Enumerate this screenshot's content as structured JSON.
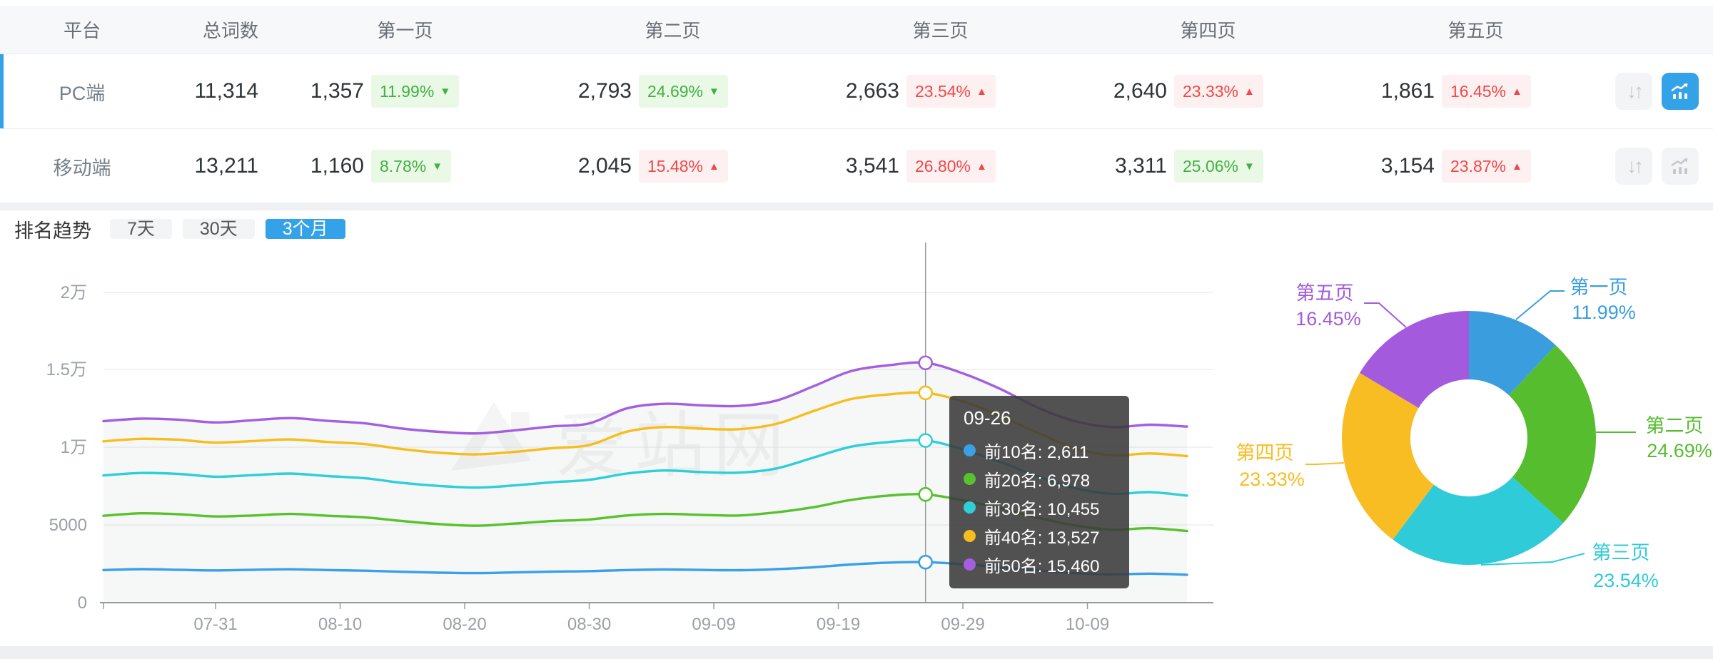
{
  "colors": {
    "accent": "#34a2e8",
    "positive_text": "#42b043",
    "positive_bg": "#eaf8e6",
    "negative_text": "#f04848",
    "negative_bg": "#fdf0f1",
    "header_bg": "#f7f8fa",
    "series_blue": "#3aa0e8",
    "series_green": "#58c22e",
    "series_cyan": "#2ecfd8",
    "series_yellow": "#f6bd1d",
    "series_purple": "#a45fe0"
  },
  "icons": {
    "sort_glyph": "↓↑"
  },
  "table": {
    "columns": [
      "平台",
      "总词数",
      "第一页",
      "第二页",
      "第三页",
      "第四页",
      "第五页"
    ],
    "rows": [
      {
        "platform": "PC端",
        "selected": true,
        "total": "11,314",
        "pages": [
          {
            "count": "1,357",
            "pct": "11.99%",
            "trend": "down",
            "tone": "green"
          },
          {
            "count": "2,793",
            "pct": "24.69%",
            "trend": "down",
            "tone": "green"
          },
          {
            "count": "2,663",
            "pct": "23.54%",
            "trend": "up",
            "tone": "red"
          },
          {
            "count": "2,640",
            "pct": "23.33%",
            "trend": "up",
            "tone": "red"
          },
          {
            "count": "1,861",
            "pct": "16.45%",
            "trend": "up",
            "tone": "red"
          }
        ],
        "actions": {
          "sort_active": false,
          "chart_active": true
        }
      },
      {
        "platform": "移动端",
        "selected": false,
        "total": "13,211",
        "pages": [
          {
            "count": "1,160",
            "pct": "8.78%",
            "trend": "down",
            "tone": "green"
          },
          {
            "count": "2,045",
            "pct": "15.48%",
            "trend": "up",
            "tone": "red"
          },
          {
            "count": "3,541",
            "pct": "26.80%",
            "trend": "up",
            "tone": "red"
          },
          {
            "count": "3,311",
            "pct": "25.06%",
            "trend": "down",
            "tone": "green"
          },
          {
            "count": "3,154",
            "pct": "23.87%",
            "trend": "up",
            "tone": "red"
          }
        ],
        "actions": {
          "sort_active": false,
          "chart_active": false
        }
      }
    ]
  },
  "trends": {
    "title": "排名趋势",
    "tabs": [
      {
        "label": "7天",
        "active": false
      },
      {
        "label": "30天",
        "active": false
      },
      {
        "label": "3个月",
        "active": true
      }
    ]
  },
  "watermark": "爱站网",
  "tooltip": {
    "date": "09-26",
    "rows": [
      {
        "label": "前10名",
        "value": "2,611"
      },
      {
        "label": "前20名",
        "value": "6,978"
      },
      {
        "label": "前30名",
        "value": "10,455"
      },
      {
        "label": "前40名",
        "value": "13,527"
      },
      {
        "label": "前50名",
        "value": "15,460"
      }
    ]
  },
  "chart_data": [
    {
      "type": "line",
      "title": "排名趋势 (3个月)",
      "xlabel": "",
      "ylabel": "",
      "ylim": [
        0,
        20000
      ],
      "grid": true,
      "y_ticks": [
        "0",
        "5000",
        "1万",
        "1.5万",
        "2万"
      ],
      "x_ticks": [
        "07-31",
        "08-10",
        "08-20",
        "08-30",
        "09-09",
        "09-19",
        "09-29",
        "10-09"
      ],
      "x_tick_days": [
        9,
        19,
        29,
        39,
        49,
        59,
        69,
        79
      ],
      "day_span": [
        0,
        87
      ],
      "crosshair": {
        "date": "09-26",
        "day": 66
      },
      "series": [
        {
          "name": "前10名",
          "color": "#3aa0e8",
          "points": [
            [
              0,
              2100
            ],
            [
              3,
              2160
            ],
            [
              6,
              2120
            ],
            [
              9,
              2080
            ],
            [
              12,
              2120
            ],
            [
              15,
              2150
            ],
            [
              18,
              2100
            ],
            [
              21,
              2060
            ],
            [
              24,
              1990
            ],
            [
              27,
              1930
            ],
            [
              30,
              1905
            ],
            [
              33,
              1950
            ],
            [
              36,
              2000
            ],
            [
              39,
              2030
            ],
            [
              42,
              2100
            ],
            [
              45,
              2140
            ],
            [
              48,
              2110
            ],
            [
              51,
              2090
            ],
            [
              54,
              2160
            ],
            [
              57,
              2280
            ],
            [
              60,
              2460
            ],
            [
              63,
              2580
            ],
            [
              66,
              2611
            ],
            [
              69,
              2480
            ],
            [
              72,
              2280
            ],
            [
              75,
              2080
            ],
            [
              78,
              1900
            ],
            [
              81,
              1820
            ],
            [
              84,
              1870
            ],
            [
              87,
              1800
            ]
          ]
        },
        {
          "name": "前20名",
          "color": "#58c22e",
          "points": [
            [
              0,
              5600
            ],
            [
              3,
              5760
            ],
            [
              6,
              5700
            ],
            [
              9,
              5560
            ],
            [
              12,
              5620
            ],
            [
              15,
              5720
            ],
            [
              18,
              5600
            ],
            [
              21,
              5500
            ],
            [
              24,
              5260
            ],
            [
              27,
              5060
            ],
            [
              30,
              4960
            ],
            [
              33,
              5100
            ],
            [
              36,
              5260
            ],
            [
              39,
              5360
            ],
            [
              42,
              5620
            ],
            [
              45,
              5720
            ],
            [
              48,
              5660
            ],
            [
              51,
              5620
            ],
            [
              54,
              5820
            ],
            [
              57,
              6150
            ],
            [
              60,
              6620
            ],
            [
              63,
              6900
            ],
            [
              66,
              6978
            ],
            [
              69,
              6600
            ],
            [
              72,
              6080
            ],
            [
              75,
              5480
            ],
            [
              78,
              4980
            ],
            [
              81,
              4700
            ],
            [
              84,
              4800
            ],
            [
              87,
              4620
            ]
          ]
        },
        {
          "name": "前30名",
          "color": "#2ecfd8",
          "points": [
            [
              0,
              8200
            ],
            [
              3,
              8360
            ],
            [
              6,
              8300
            ],
            [
              9,
              8120
            ],
            [
              12,
              8220
            ],
            [
              15,
              8320
            ],
            [
              18,
              8160
            ],
            [
              21,
              8020
            ],
            [
              24,
              7720
            ],
            [
              27,
              7520
            ],
            [
              30,
              7420
            ],
            [
              33,
              7560
            ],
            [
              36,
              7760
            ],
            [
              39,
              7920
            ],
            [
              42,
              8320
            ],
            [
              45,
              8520
            ],
            [
              48,
              8420
            ],
            [
              51,
              8380
            ],
            [
              54,
              8650
            ],
            [
              57,
              9350
            ],
            [
              60,
              10050
            ],
            [
              63,
              10350
            ],
            [
              66,
              10455
            ],
            [
              69,
              9880
            ],
            [
              72,
              9060
            ],
            [
              75,
              8150
            ],
            [
              78,
              7380
            ],
            [
              81,
              7020
            ],
            [
              84,
              7120
            ],
            [
              87,
              6900
            ]
          ]
        },
        {
          "name": "前40名",
          "color": "#f6bd1d",
          "points": [
            [
              0,
              10400
            ],
            [
              3,
              10560
            ],
            [
              6,
              10500
            ],
            [
              9,
              10320
            ],
            [
              12,
              10420
            ],
            [
              15,
              10520
            ],
            [
              18,
              10360
            ],
            [
              21,
              10220
            ],
            [
              24,
              9900
            ],
            [
              27,
              9660
            ],
            [
              30,
              9560
            ],
            [
              33,
              9720
            ],
            [
              36,
              9960
            ],
            [
              39,
              10160
            ],
            [
              42,
              11020
            ],
            [
              45,
              11320
            ],
            [
              48,
              11220
            ],
            [
              51,
              11180
            ],
            [
              54,
              11520
            ],
            [
              57,
              12350
            ],
            [
              60,
              13120
            ],
            [
              63,
              13420
            ],
            [
              66,
              13527
            ],
            [
              69,
              12980
            ],
            [
              72,
              12050
            ],
            [
              75,
              10950
            ],
            [
              78,
              9950
            ],
            [
              81,
              9500
            ],
            [
              84,
              9620
            ],
            [
              87,
              9450
            ]
          ]
        },
        {
          "name": "前50名",
          "color": "#a45fe0",
          "points": [
            [
              0,
              11700
            ],
            [
              3,
              11860
            ],
            [
              6,
              11800
            ],
            [
              9,
              11620
            ],
            [
              12,
              11760
            ],
            [
              15,
              11900
            ],
            [
              18,
              11720
            ],
            [
              21,
              11560
            ],
            [
              24,
              11220
            ],
            [
              27,
              11010
            ],
            [
              30,
              10910
            ],
            [
              33,
              11110
            ],
            [
              36,
              11360
            ],
            [
              39,
              11560
            ],
            [
              42,
              12520
            ],
            [
              45,
              12820
            ],
            [
              48,
              12720
            ],
            [
              51,
              12680
            ],
            [
              54,
              13020
            ],
            [
              57,
              13950
            ],
            [
              60,
              14920
            ],
            [
              63,
              15300
            ],
            [
              66,
              15460
            ],
            [
              69,
              14780
            ],
            [
              72,
              13780
            ],
            [
              75,
              12580
            ],
            [
              78,
              11700
            ],
            [
              81,
              11320
            ],
            [
              84,
              11470
            ],
            [
              87,
              11350
            ]
          ]
        }
      ]
    },
    {
      "type": "pie",
      "title": "页面分布",
      "donut": true,
      "slices": [
        {
          "label": "第一页",
          "value": 11.99,
          "pct_label": "11.99%",
          "color": "#3a9ede"
        },
        {
          "label": "第二页",
          "value": 24.69,
          "pct_label": "24.69%",
          "color": "#56bd2f"
        },
        {
          "label": "第三页",
          "value": 23.54,
          "pct_label": "23.54%",
          "color": "#30cbd8"
        },
        {
          "label": "第四页",
          "value": 23.33,
          "pct_label": "23.33%",
          "color": "#f7bd23"
        },
        {
          "label": "第五页",
          "value": 16.45,
          "pct_label": "16.45%",
          "color": "#a35add"
        }
      ]
    }
  ]
}
